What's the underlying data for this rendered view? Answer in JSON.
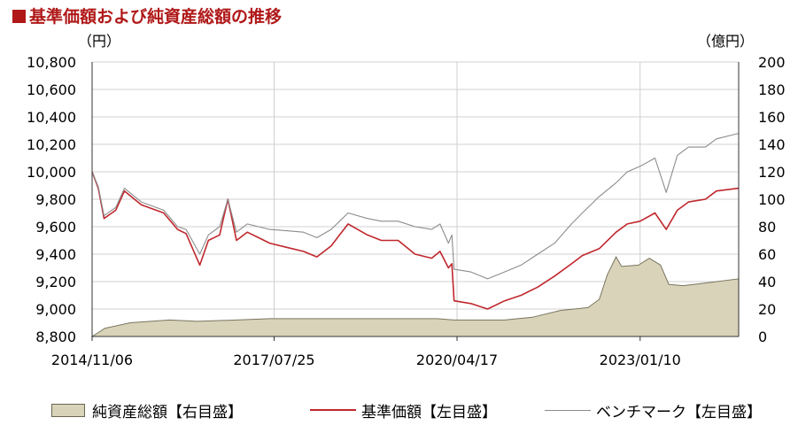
{
  "title": "■基準価額および純資産総額の推移",
  "chart_data": {
    "type": "line",
    "title": "基準価額および純資産総額の推移",
    "left_axis": {
      "unit_label": "（円）",
      "min": 8800,
      "max": 10800,
      "step": 200,
      "ticks": [
        "8,800",
        "9,000",
        "9,200",
        "9,400",
        "9,600",
        "9,800",
        "10,000",
        "10,200",
        "10,400",
        "10,600",
        "10,800"
      ]
    },
    "right_axis": {
      "unit_label": "（億円）",
      "min": 0,
      "max": 200,
      "step": 20,
      "ticks": [
        "0",
        "20",
        "40",
        "60",
        "80",
        "100",
        "120",
        "140",
        "160",
        "180",
        "200"
      ]
    },
    "x_range": [
      "2014/11/06",
      "2024/06/30"
    ],
    "x_ticks": [
      "2014/11/06",
      "2017/07/25",
      "2020/04/17",
      "2023/01/10"
    ],
    "grid": true,
    "legend_position": "bottom",
    "series": [
      {
        "name": "純資産総額【右目盛】",
        "type": "area",
        "axis": "right",
        "color": "#d8d3b9",
        "points": [
          [
            "2014-11-06",
            0
          ],
          [
            "2015-01-15",
            6
          ],
          [
            "2015-06-01",
            10
          ],
          [
            "2016-01-01",
            12
          ],
          [
            "2016-06-01",
            11
          ],
          [
            "2017-01-01",
            12
          ],
          [
            "2017-07-01",
            13
          ],
          [
            "2018-01-01",
            13
          ],
          [
            "2019-01-01",
            13
          ],
          [
            "2020-01-01",
            13
          ],
          [
            "2020-04-01",
            12
          ],
          [
            "2021-01-01",
            12
          ],
          [
            "2021-06-01",
            14
          ],
          [
            "2021-11-01",
            19
          ],
          [
            "2022-04-01",
            21
          ],
          [
            "2022-06-01",
            27
          ],
          [
            "2022-07-15",
            45
          ],
          [
            "2022-09-01",
            58
          ],
          [
            "2022-10-01",
            51
          ],
          [
            "2023-01-01",
            52
          ],
          [
            "2023-03-01",
            57
          ],
          [
            "2023-05-01",
            52
          ],
          [
            "2023-06-15",
            38
          ],
          [
            "2023-09-01",
            37
          ],
          [
            "2024-01-01",
            39
          ],
          [
            "2024-06-30",
            42
          ]
        ]
      },
      {
        "name": "基準価額【左目盛】",
        "type": "line",
        "axis": "left",
        "color": "#c0272d",
        "points": [
          [
            "2014-11-06",
            10000
          ],
          [
            "2014-12-10",
            9880
          ],
          [
            "2015-01-10",
            9660
          ],
          [
            "2015-03-15",
            9720
          ],
          [
            "2015-05-01",
            9860
          ],
          [
            "2015-08-01",
            9760
          ],
          [
            "2015-12-01",
            9700
          ],
          [
            "2016-02-15",
            9580
          ],
          [
            "2016-04-01",
            9550
          ],
          [
            "2016-06-15",
            9320
          ],
          [
            "2016-08-01",
            9500
          ],
          [
            "2016-10-01",
            9540
          ],
          [
            "2016-11-15",
            9800
          ],
          [
            "2017-01-01",
            9500
          ],
          [
            "2017-03-01",
            9560
          ],
          [
            "2017-05-01",
            9520
          ],
          [
            "2017-07-01",
            9480
          ],
          [
            "2017-10-01",
            9450
          ],
          [
            "2018-01-01",
            9420
          ],
          [
            "2018-03-15",
            9380
          ],
          [
            "2018-06-01",
            9460
          ],
          [
            "2018-09-01",
            9620
          ],
          [
            "2018-12-15",
            9540
          ],
          [
            "2019-03-01",
            9500
          ],
          [
            "2019-06-01",
            9500
          ],
          [
            "2019-09-01",
            9400
          ],
          [
            "2019-12-01",
            9370
          ],
          [
            "2020-01-15",
            9420
          ],
          [
            "2020-03-01",
            9300
          ],
          [
            "2020-03-20",
            9330
          ],
          [
            "2020-04-01",
            9060
          ],
          [
            "2020-07-01",
            9040
          ],
          [
            "2020-10-01",
            9000
          ],
          [
            "2021-01-01",
            9060
          ],
          [
            "2021-04-01",
            9100
          ],
          [
            "2021-07-01",
            9160
          ],
          [
            "2021-10-01",
            9240
          ],
          [
            "2022-01-01",
            9330
          ],
          [
            "2022-03-01",
            9390
          ],
          [
            "2022-06-01",
            9440
          ],
          [
            "2022-09-01",
            9560
          ],
          [
            "2022-11-01",
            9620
          ],
          [
            "2023-01-10",
            9640
          ],
          [
            "2023-04-01",
            9700
          ],
          [
            "2023-06-01",
            9580
          ],
          [
            "2023-08-01",
            9720
          ],
          [
            "2023-10-01",
            9780
          ],
          [
            "2024-01-01",
            9800
          ],
          [
            "2024-03-01",
            9860
          ],
          [
            "2024-06-30",
            9880
          ]
        ]
      },
      {
        "name": "ベンチマーク【左目盛】",
        "type": "line",
        "axis": "left",
        "color": "#8c8c8c",
        "points": [
          [
            "2014-11-06",
            10000
          ],
          [
            "2014-12-10",
            9890
          ],
          [
            "2015-01-10",
            9680
          ],
          [
            "2015-03-15",
            9740
          ],
          [
            "2015-05-01",
            9880
          ],
          [
            "2015-08-01",
            9780
          ],
          [
            "2015-12-01",
            9720
          ],
          [
            "2016-02-15",
            9600
          ],
          [
            "2016-04-01",
            9580
          ],
          [
            "2016-06-15",
            9400
          ],
          [
            "2016-08-01",
            9540
          ],
          [
            "2016-10-01",
            9600
          ],
          [
            "2016-11-15",
            9800
          ],
          [
            "2017-01-01",
            9560
          ],
          [
            "2017-03-01",
            9620
          ],
          [
            "2017-05-01",
            9600
          ],
          [
            "2017-07-01",
            9580
          ],
          [
            "2017-10-01",
            9570
          ],
          [
            "2018-01-01",
            9560
          ],
          [
            "2018-03-15",
            9520
          ],
          [
            "2018-06-01",
            9580
          ],
          [
            "2018-09-01",
            9700
          ],
          [
            "2018-12-15",
            9660
          ],
          [
            "2019-03-01",
            9640
          ],
          [
            "2019-06-01",
            9640
          ],
          [
            "2019-09-01",
            9600
          ],
          [
            "2019-12-01",
            9580
          ],
          [
            "2020-01-15",
            9620
          ],
          [
            "2020-03-01",
            9480
          ],
          [
            "2020-03-20",
            9540
          ],
          [
            "2020-04-01",
            9290
          ],
          [
            "2020-07-01",
            9270
          ],
          [
            "2020-10-01",
            9220
          ],
          [
            "2021-01-01",
            9270
          ],
          [
            "2021-04-01",
            9320
          ],
          [
            "2021-07-01",
            9400
          ],
          [
            "2021-10-01",
            9480
          ],
          [
            "2022-01-01",
            9620
          ],
          [
            "2022-03-01",
            9700
          ],
          [
            "2022-06-01",
            9820
          ],
          [
            "2022-09-01",
            9920
          ],
          [
            "2022-11-01",
            10000
          ],
          [
            "2023-01-10",
            10040
          ],
          [
            "2023-04-01",
            10100
          ],
          [
            "2023-06-01",
            9850
          ],
          [
            "2023-08-01",
            10120
          ],
          [
            "2023-10-01",
            10180
          ],
          [
            "2024-01-01",
            10180
          ],
          [
            "2024-03-01",
            10240
          ],
          [
            "2024-06-30",
            10280
          ]
        ]
      }
    ]
  },
  "legend": [
    {
      "label": "純資産総額【右目盛】",
      "color": "#d8d3b9"
    },
    {
      "label": "基準価額【左目盛】",
      "color": "#c0272d"
    },
    {
      "label": "ベンチマーク【左目盛】",
      "color": "#8c8c8c"
    }
  ]
}
